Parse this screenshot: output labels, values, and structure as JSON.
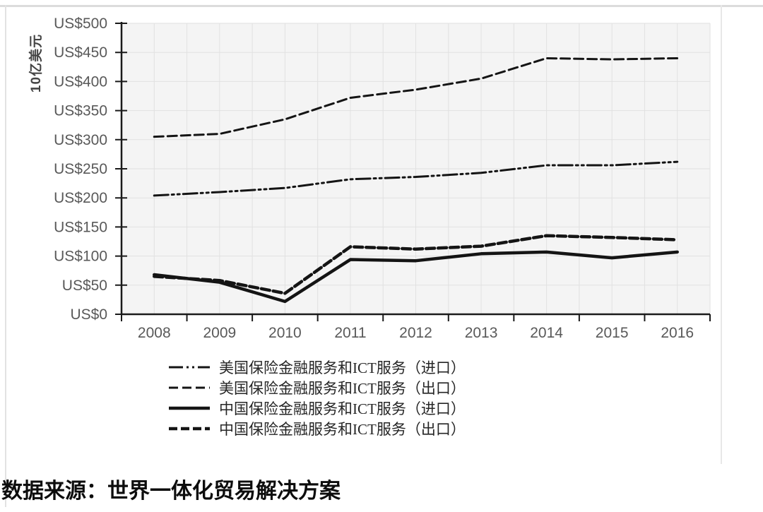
{
  "y_axis_title": "10亿美元",
  "source_note": "数据来源：世界一体化贸易解决方案",
  "colors": {
    "line": "#141414",
    "axis": "#1a1a1a",
    "tick_label": "#595959",
    "grid": "#e1e1e1",
    "plot_bg": "#f4f4f4",
    "frame": "#dcdcdc",
    "legend_text": "#262626"
  },
  "chart_data": {
    "type": "line",
    "categories": [
      "2008",
      "2009",
      "2010",
      "2011",
      "2012",
      "2013",
      "2014",
      "2015",
      "2016"
    ],
    "series": [
      {
        "name": "美国保险金融服务和ICT服务（进口）",
        "style": "dash-dot-dot",
        "width": 3,
        "values": [
          204,
          210,
          217,
          232,
          236,
          243,
          256,
          256,
          262
        ]
      },
      {
        "name": "美国保险金融服务和ICT服务（出口）",
        "style": "dashed",
        "width": 3,
        "values": [
          305,
          310,
          335,
          372,
          386,
          405,
          440,
          438,
          440
        ]
      },
      {
        "name": "中国保险金融服务和ICT服务（进口）",
        "style": "solid",
        "width": 4.5,
        "values": [
          68,
          55,
          22,
          94,
          92,
          104,
          107,
          97,
          107
        ]
      },
      {
        "name": "中国保险金融服务和ICT服务（出口）",
        "style": "dashed-thick",
        "width": 4.5,
        "values": [
          65,
          58,
          36,
          116,
          112,
          117,
          135,
          132,
          128
        ]
      }
    ],
    "xlabel": "",
    "ylabel": "10亿美元",
    "ylim": [
      0,
      500
    ],
    "ytick_step": 50,
    "ytick_labels": [
      "US$0",
      "US$50",
      "US$100",
      "US$150",
      "US$200",
      "US$250",
      "US$300",
      "US$350",
      "US$400",
      "US$450",
      "US$500"
    ],
    "grid": true,
    "legend_position": "bottom-left"
  }
}
